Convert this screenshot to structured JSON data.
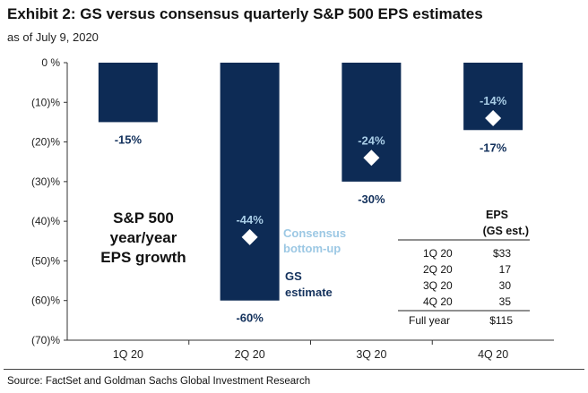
{
  "title": "Exhibit 2: GS versus consensus quarterly S&P 500 EPS estimates",
  "subtitle": "as of July 9, 2020",
  "source": "Source: FactSet and Goldman Sachs Global Investment Research",
  "chart_data": {
    "type": "bar",
    "categories": [
      "1Q 20",
      "2Q 20",
      "3Q 20",
      "4Q 20"
    ],
    "series": [
      {
        "name": "GS estimate",
        "values": [
          -15,
          -60,
          -30,
          -17
        ],
        "labels": [
          "-15%",
          "-60%",
          "-30%",
          "-17%"
        ]
      },
      {
        "name": "Consensus bottom-up",
        "values": [
          null,
          -44,
          -24,
          -14
        ],
        "labels": [
          "",
          "-44%",
          "-24%",
          "-14%"
        ]
      }
    ],
    "ylim": [
      -70,
      0
    ],
    "yticks": [
      0,
      -10,
      -20,
      -30,
      -40,
      -50,
      -60,
      -70
    ],
    "ytick_labels": [
      "0 %",
      "(10)%",
      "(20)%",
      "(30)%",
      "(40)%",
      "(50)%",
      "(60)%",
      "(70)%"
    ],
    "panel_label": [
      "S&P 500",
      "year/year",
      "EPS growth"
    ],
    "legend": {
      "consensus": [
        "Consensus",
        "bottom-up"
      ],
      "gs": [
        "GS",
        "estimate"
      ]
    },
    "colors": {
      "gs_bar": "#0d2b55",
      "consensus_marker": "#ffffff",
      "gs_label": "#13315c",
      "consensus_label": "#a9cde6"
    },
    "grid": false
  },
  "eps_table": {
    "header": [
      "EPS",
      "(GS est.)"
    ],
    "rows": [
      {
        "label": "1Q 20",
        "value": "$33"
      },
      {
        "label": "2Q 20",
        "value": "17"
      },
      {
        "label": "3Q 20",
        "value": "30"
      },
      {
        "label": "4Q 20",
        "value": "35"
      }
    ],
    "total": {
      "label": "Full year",
      "value": "$115"
    }
  }
}
